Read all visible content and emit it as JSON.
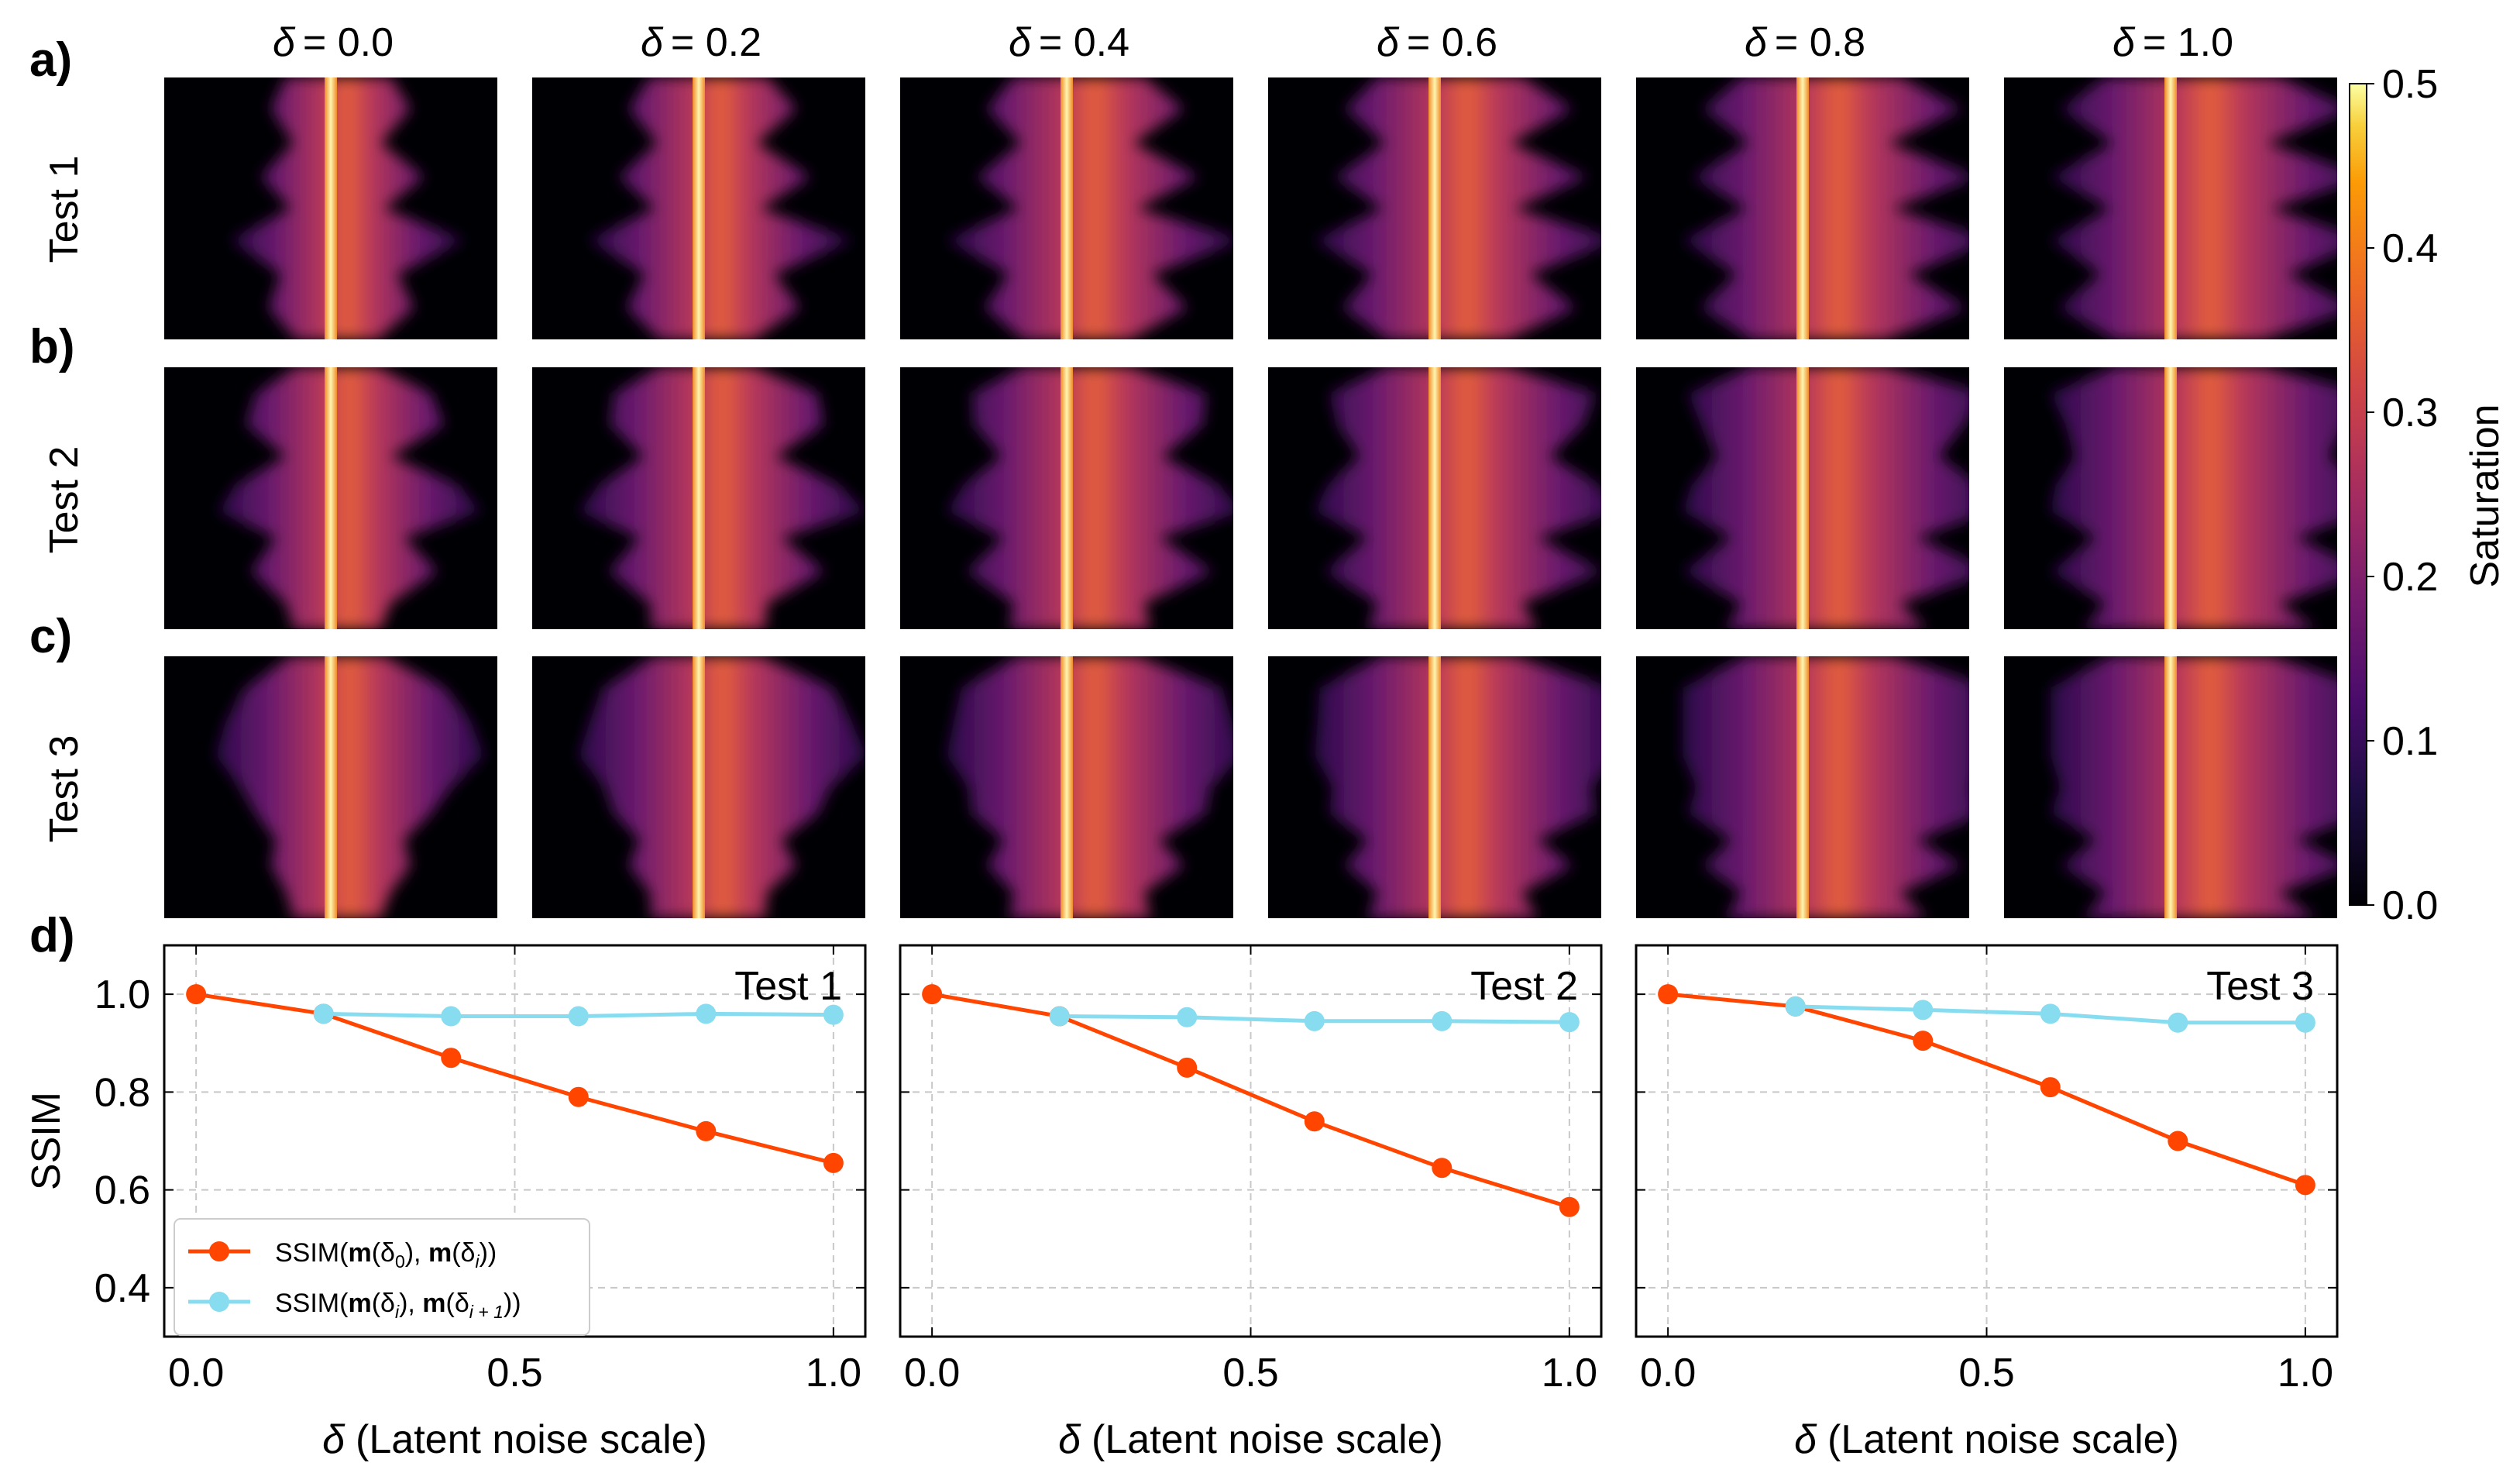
{
  "panel_labels": [
    "a)",
    "b)",
    "c)",
    "d)"
  ],
  "columns": [
    {
      "symbol": "δ",
      "value": "= 0.0"
    },
    {
      "symbol": "δ",
      "value": "= 0.2"
    },
    {
      "symbol": "δ",
      "value": "= 0.4"
    },
    {
      "symbol": "δ",
      "value": "= 0.6"
    },
    {
      "symbol": "δ",
      "value": "= 0.8"
    },
    {
      "symbol": "δ",
      "value": "= 1.0"
    }
  ],
  "rows": [
    "Test 1",
    "Test 2",
    "Test 3"
  ],
  "colorbar": {
    "label": "Saturation",
    "ticks": [
      "0.0",
      "0.1",
      "0.2",
      "0.3",
      "0.4",
      "0.5"
    ],
    "range": [
      0.0,
      0.5
    ],
    "colormap": "inferno"
  },
  "colors": {
    "red": "#FF4500",
    "cyan": "#87DCEF"
  },
  "chart_data": [
    {
      "type": "line",
      "title": "Test 1",
      "xlabel": "δ (Latent noise scale)",
      "ylabel": "SSIM",
      "xlim": [
        -0.05,
        1.05
      ],
      "ylim": [
        0.3,
        1.1
      ],
      "xticks": [
        "0.0",
        "0.5",
        "1.0"
      ],
      "yticks": [
        "0.4",
        "0.6",
        "0.8",
        "1.0"
      ],
      "grid": true,
      "legend_position": "lower-left",
      "series": [
        {
          "name": "SSIM(m(δ0), m(δi))",
          "x": [
            0.0,
            0.2,
            0.4,
            0.6,
            0.8,
            1.0
          ],
          "values": [
            1.0,
            0.96,
            0.87,
            0.79,
            0.72,
            0.655
          ]
        },
        {
          "name": "SSIM(m(δi), m(δi+1))",
          "x": [
            0.2,
            0.4,
            0.6,
            0.8,
            1.0
          ],
          "values": [
            0.96,
            0.955,
            0.955,
            0.96,
            0.958
          ]
        }
      ]
    },
    {
      "type": "line",
      "title": "Test 2",
      "xlabel": "δ (Latent noise scale)",
      "ylabel": "",
      "xlim": [
        -0.05,
        1.05
      ],
      "ylim": [
        0.3,
        1.1
      ],
      "xticks": [
        "0.0",
        "0.5",
        "1.0"
      ],
      "yticks": [],
      "grid": true,
      "series": [
        {
          "name": "SSIM(m(δ0), m(δi))",
          "x": [
            0.0,
            0.2,
            0.4,
            0.6,
            0.8,
            1.0
          ],
          "values": [
            1.0,
            0.955,
            0.85,
            0.74,
            0.645,
            0.565
          ]
        },
        {
          "name": "SSIM(m(δi), m(δi+1))",
          "x": [
            0.2,
            0.4,
            0.6,
            0.8,
            1.0
          ],
          "values": [
            0.955,
            0.953,
            0.945,
            0.945,
            0.943
          ]
        }
      ]
    },
    {
      "type": "line",
      "title": "Test 3",
      "xlabel": "δ (Latent noise scale)",
      "ylabel": "",
      "xlim": [
        -0.05,
        1.05
      ],
      "ylim": [
        0.3,
        1.1
      ],
      "xticks": [
        "0.0",
        "0.5",
        "1.0"
      ],
      "yticks": [],
      "grid": true,
      "series": [
        {
          "name": "SSIM(m(δ0), m(δi))",
          "x": [
            0.0,
            0.2,
            0.4,
            0.6,
            0.8,
            1.0
          ],
          "values": [
            1.0,
            0.975,
            0.905,
            0.81,
            0.7,
            0.61
          ]
        },
        {
          "name": "SSIM(m(δi), m(δi+1))",
          "x": [
            0.2,
            0.4,
            0.6,
            0.8,
            1.0
          ],
          "values": [
            0.975,
            0.968,
            0.96,
            0.942,
            0.942
          ]
        }
      ]
    }
  ],
  "legend": {
    "entries": [
      {
        "prefix": "SSIM(",
        "m1": "m",
        "arg1": "(δ",
        "sub1": "0",
        "close1": "), ",
        "m2": "m",
        "arg2": "(δ",
        "sub2": "i",
        "close2": "))"
      },
      {
        "prefix": "SSIM(",
        "m1": "m",
        "arg1": "(δ",
        "sub1": "i",
        "close1": "), ",
        "m2": "m",
        "arg2": "(δ",
        "sub2": "i + 1",
        "close2": "))"
      }
    ]
  }
}
